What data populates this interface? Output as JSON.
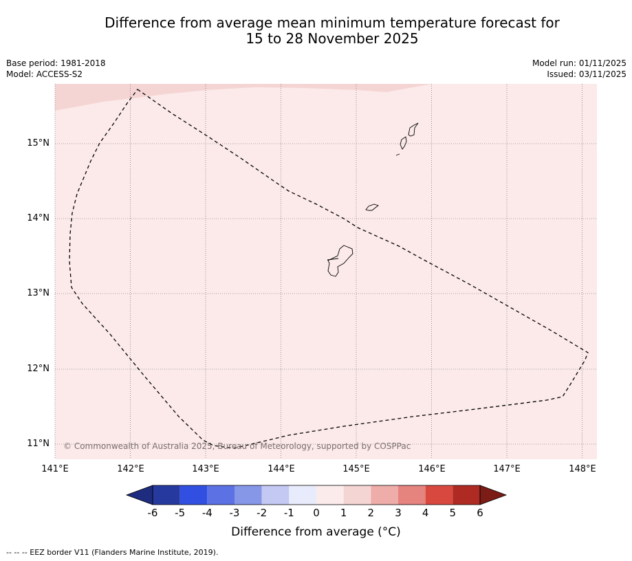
{
  "title_line1": "Difference from average mean minimum temperature forecast for",
  "title_line2": "15 to 28 November 2025",
  "base_period": "Base period: 1981-2018",
  "model": "Model: ACCESS-S2",
  "model_run": "Model run: 01/11/2025",
  "issued": "Issued: 03/11/2025",
  "lat_labels": [
    "15°N",
    "14°N",
    "13°N",
    "12°N",
    "11°N"
  ],
  "lon_labels": [
    "141°E",
    "142°E",
    "143°E",
    "144°E",
    "145°E",
    "146°E",
    "147°E",
    "148°E"
  ],
  "copyright": "© Commonwealth of Australia 2025, Bureau of Meteorology, supported by COSPPac",
  "colorbar": {
    "ticks": [
      "-6",
      "-5",
      "-4",
      "-3",
      "-2",
      "-1",
      "0",
      "1",
      "2",
      "3",
      "4",
      "5",
      "6"
    ],
    "colors": [
      "#26399f",
      "#314fe0",
      "#5c72e4",
      "#8797e8",
      "#c3c9f3",
      "#e8ebfb",
      "#fbeceb",
      "#f5d5d4",
      "#eeada9",
      "#e5837f",
      "#d8483f",
      "#af2a22"
    ],
    "under_color": "#1e2c80",
    "over_color": "#7b1c17",
    "label": "Difference from average (°C)"
  },
  "map": {
    "background_color": "#fbeae9",
    "anomaly_patch_color": "#f5d5d4",
    "background_category": "0 to 1",
    "patch_category": "1 to 2"
  },
  "footnote": "--  --  -- EEZ border V11 (Flanders Marine Institute, 2019)."
}
